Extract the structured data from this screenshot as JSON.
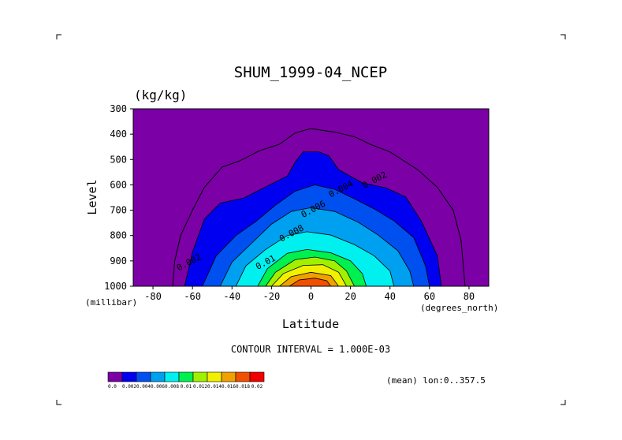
{
  "chart_data": {
    "type": "contour",
    "title": "SHUM_1999-04_NCEP",
    "units": "(kg/kg)",
    "xlabel": "Latitude",
    "ylabel": "Level",
    "x_unit_label": "(degrees_north)",
    "y_unit_label": "(millibar)",
    "xlim": [
      -90,
      90
    ],
    "ylim": [
      1000,
      300
    ],
    "x_ticks": [
      -80,
      -60,
      -40,
      -20,
      0,
      20,
      40,
      60,
      80
    ],
    "y_ticks": [
      300,
      400,
      500,
      600,
      700,
      800,
      900,
      1000
    ],
    "contour_interval_text": "CONTOUR INTERVAL = 1.000E-03",
    "mean_text": "(mean) lon:0..357.5",
    "contour_labels": [
      {
        "text": "0.002",
        "lat": 27,
        "lev": 615
      },
      {
        "text": "0.004",
        "lat": 10,
        "lev": 650
      },
      {
        "text": "0.006",
        "lat": -4,
        "lev": 730
      },
      {
        "text": "0.008",
        "lat": -15,
        "lev": 825
      },
      {
        "text": "0.01",
        "lat": -27,
        "lev": 935
      },
      {
        "text": "0.002",
        "lat": -67,
        "lev": 940
      }
    ],
    "colorbar": {
      "colors": [
        "#7b00a6",
        "#0000f0",
        "#0050f0",
        "#00a0f0",
        "#00f0f0",
        "#00f050",
        "#a0f000",
        "#f0f000",
        "#f0a000",
        "#f05000",
        "#f00000"
      ],
      "labels": [
        "0.0",
        "0.002",
        "0.004",
        "0.006",
        "0.008",
        "0.01",
        "0.012",
        "0.014",
        "0.016",
        "0.018",
        "0.02"
      ]
    },
    "regions": [
      {
        "color": "#0000f0",
        "left": [
          [
            -64,
            1000
          ],
          [
            -60,
            865
          ],
          [
            -54,
            735
          ],
          [
            -46,
            672
          ],
          [
            -34,
            652
          ],
          [
            -24,
            612
          ],
          [
            -12,
            565
          ],
          [
            -8,
            510
          ],
          [
            -4,
            470
          ],
          [
            4,
            470
          ],
          [
            9,
            485
          ],
          [
            14,
            540
          ],
          [
            26,
            592
          ],
          [
            38,
            612
          ],
          [
            48,
            648
          ],
          [
            56,
            745
          ],
          [
            64,
            880
          ],
          [
            66,
            1000
          ]
        ]
      },
      {
        "color": "#0050f0",
        "left": [
          [
            -55,
            1000
          ],
          [
            -48,
            880
          ],
          [
            -38,
            800
          ],
          [
            -28,
            745
          ],
          [
            -18,
            680
          ],
          [
            -8,
            625
          ],
          [
            2,
            600
          ],
          [
            12,
            618
          ],
          [
            22,
            655
          ],
          [
            32,
            695
          ],
          [
            42,
            742
          ],
          [
            52,
            808
          ],
          [
            58,
            920
          ],
          [
            60,
            1000
          ]
        ]
      },
      {
        "color": "#00a0f0",
        "left": [
          [
            -46,
            1000
          ],
          [
            -40,
            905
          ],
          [
            -30,
            830
          ],
          [
            -20,
            755
          ],
          [
            -10,
            705
          ],
          [
            0,
            690
          ],
          [
            12,
            705
          ],
          [
            24,
            748
          ],
          [
            34,
            798
          ],
          [
            44,
            860
          ],
          [
            50,
            940
          ],
          [
            52,
            1000
          ]
        ]
      },
      {
        "color": "#00f0f0",
        "left": [
          [
            -38,
            1000
          ],
          [
            -33,
            920
          ],
          [
            -23,
            855
          ],
          [
            -12,
            800
          ],
          [
            -2,
            785
          ],
          [
            10,
            798
          ],
          [
            22,
            836
          ],
          [
            32,
            880
          ],
          [
            40,
            940
          ],
          [
            42,
            1000
          ]
        ]
      },
      {
        "color": "#00f050",
        "left": [
          [
            -27,
            1000
          ],
          [
            -22,
            930
          ],
          [
            -12,
            870
          ],
          [
            -2,
            855
          ],
          [
            10,
            868
          ],
          [
            20,
            900
          ],
          [
            26,
            950
          ],
          [
            28,
            1000
          ]
        ]
      },
      {
        "color": "#a0f000",
        "left": [
          [
            -23,
            1000
          ],
          [
            -18,
            945
          ],
          [
            -8,
            895
          ],
          [
            2,
            885
          ],
          [
            12,
            900
          ],
          [
            18,
            940
          ],
          [
            22,
            1000
          ]
        ]
      },
      {
        "color": "#f0f000",
        "left": [
          [
            -20,
            1000
          ],
          [
            -14,
            950
          ],
          [
            -4,
            918
          ],
          [
            6,
            915
          ],
          [
            14,
            945
          ],
          [
            18,
            1000
          ]
        ]
      },
      {
        "color": "#f0a000",
        "left": [
          [
            -16,
            1000
          ],
          [
            -10,
            962
          ],
          [
            0,
            945
          ],
          [
            10,
            958
          ],
          [
            14,
            1000
          ]
        ]
      },
      {
        "color": "#f05000",
        "left": [
          [
            -11,
            1000
          ],
          [
            -6,
            975
          ],
          [
            2,
            968
          ],
          [
            8,
            978
          ],
          [
            10,
            1000
          ]
        ]
      }
    ],
    "outer_contour": [
      [
        -70,
        1000
      ],
      [
        -69,
        900
      ],
      [
        -66,
        800
      ],
      [
        -60,
        700
      ],
      [
        -54,
        610
      ],
      [
        -45,
        530
      ],
      [
        -36,
        505
      ],
      [
        -26,
        465
      ],
      [
        -16,
        440
      ],
      [
        -8,
        395
      ],
      [
        0,
        378
      ],
      [
        12,
        392
      ],
      [
        22,
        410
      ],
      [
        30,
        440
      ],
      [
        40,
        470
      ],
      [
        54,
        540
      ],
      [
        64,
        610
      ],
      [
        72,
        700
      ],
      [
        76,
        820
      ],
      [
        78,
        1000
      ]
    ]
  }
}
